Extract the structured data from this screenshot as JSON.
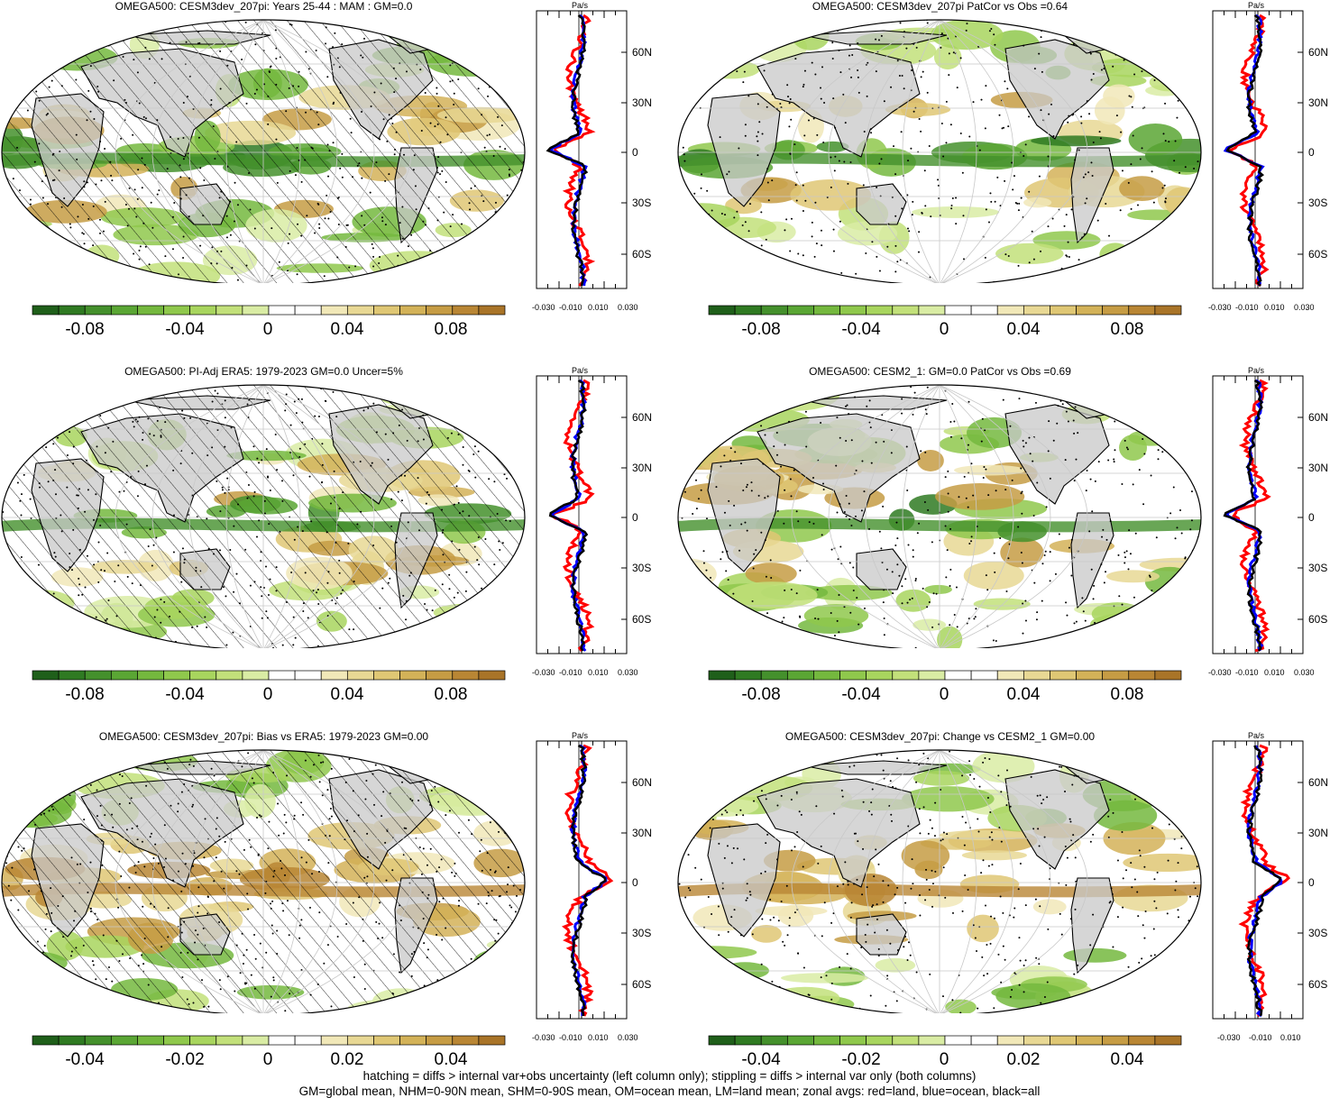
{
  "panels": [
    {
      "title": "OMEGA500: CESM3dev_207pi: Years 25-44 : MAM : GM=0.0",
      "hatch": true,
      "colorbar_ticks": [
        "-0.08",
        "-0.04",
        "0",
        "0.04",
        "0.08"
      ],
      "zonal_xticks": [
        "-0.030",
        "-0.010",
        "0.010",
        "0.030"
      ]
    },
    {
      "title": "OMEGA500: CESM3dev_207pi PatCor vs Obs =0.64",
      "hatch": false,
      "colorbar_ticks": [
        "-0.08",
        "-0.04",
        "0",
        "0.04",
        "0.08"
      ],
      "zonal_xticks": [
        "-0.030",
        "-0.010",
        "0.010",
        "0.030"
      ]
    },
    {
      "title": "OMEGA500: PI-Adj ERA5: 1979-2023 GM=0.0 Uncer=5%",
      "hatch": true,
      "colorbar_ticks": [
        "-0.08",
        "-0.04",
        "0",
        "0.04",
        "0.08"
      ],
      "zonal_xticks": [
        "-0.030",
        "-0.010",
        "0.010",
        "0.030"
      ]
    },
    {
      "title": "OMEGA500: CESM2_1: GM=0.0 PatCor vs Obs =0.69",
      "hatch": false,
      "colorbar_ticks": [
        "-0.08",
        "-0.04",
        "0",
        "0.04",
        "0.08"
      ],
      "zonal_xticks": [
        "-0.030",
        "-0.010",
        "0.010",
        "0.030"
      ]
    },
    {
      "title": "OMEGA500: CESM3dev_207pi: Bias vs ERA5: 1979-2023 GM=0.00",
      "hatch": true,
      "colorbar_ticks": [
        "-0.04",
        "-0.02",
        "0",
        "0.02",
        "0.04"
      ],
      "zonal_xticks": [
        "-0.030",
        "-0.010",
        "0.010",
        "0.030"
      ]
    },
    {
      "title": "OMEGA500: CESM3dev_207pi: Change vs CESM2_1 GM=0.00",
      "hatch": false,
      "colorbar_ticks": [
        "-0.04",
        "-0.02",
        "0",
        "0.02",
        "0.04"
      ],
      "zonal_xticks": [
        "-0.030",
        "-0.010",
        "0.010"
      ]
    }
  ],
  "zonal": {
    "unit": "Pa/s",
    "lat_labels": [
      "60N",
      "30N",
      "0",
      "30S",
      "60S"
    ],
    "series_colors": {
      "land": "#ff0000",
      "ocean": "#0000ff",
      "all": "#000000"
    }
  },
  "colorbar_colors": [
    "#1f5f1a",
    "#2f7a22",
    "#44902c",
    "#5aa634",
    "#74b83e",
    "#8fc84c",
    "#a8d55e",
    "#c2e07a",
    "#d9eca4",
    "#ffffff",
    "#ffffff",
    "#f1e8b8",
    "#e8d894",
    "#dfc774",
    "#d3b258",
    "#c69c44",
    "#b98634",
    "#a97428"
  ],
  "map_colors": {
    "land_gray": "#c8c8c8",
    "outline": "#000000",
    "grid": "#c8c8c8"
  },
  "footer": {
    "line1": "hatching = diffs > internal var+obs uncertainty (left column only); stippling = diffs > internal var only (both columns)",
    "line2": "GM=global mean, NHM=0-90N mean, SHM=0-90S mean, OM=ocean mean, LM=land mean; zonal avgs: red=land, blue=ocean, black=all"
  }
}
